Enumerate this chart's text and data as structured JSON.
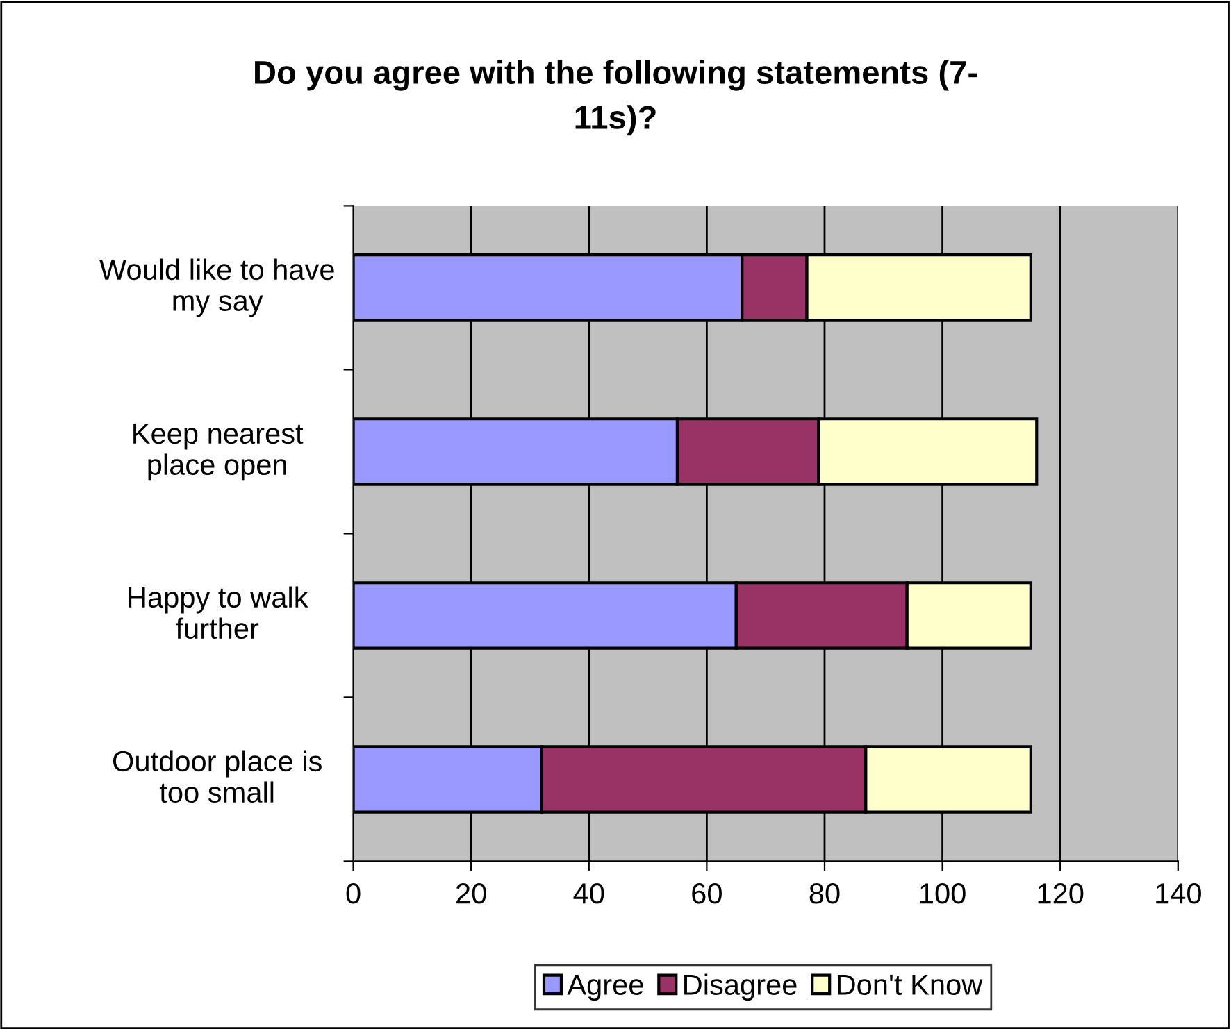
{
  "chart_data": {
    "type": "bar",
    "orientation": "horizontal",
    "stacked": true,
    "title": "Do you agree with the following statements (7-\n11s)?",
    "categories": [
      "Would like to have\nmy say",
      "Keep nearest\nplace open",
      "Happy to walk\nfurther",
      "Outdoor place is\ntoo small"
    ],
    "series": [
      {
        "name": "Agree",
        "color": "#9999ff",
        "values": [
          66,
          55,
          65,
          32
        ]
      },
      {
        "name": "Disagree",
        "color": "#993366",
        "values": [
          11,
          24,
          29,
          55
        ]
      },
      {
        "name": "Don't Know",
        "color": "#ffffcc",
        "values": [
          38,
          37,
          21,
          28
        ]
      }
    ],
    "xlim": [
      0,
      140
    ],
    "xticks": [
      0,
      20,
      40,
      60,
      80,
      100,
      120,
      140
    ],
    "grid": "x",
    "legend": "bottom"
  }
}
